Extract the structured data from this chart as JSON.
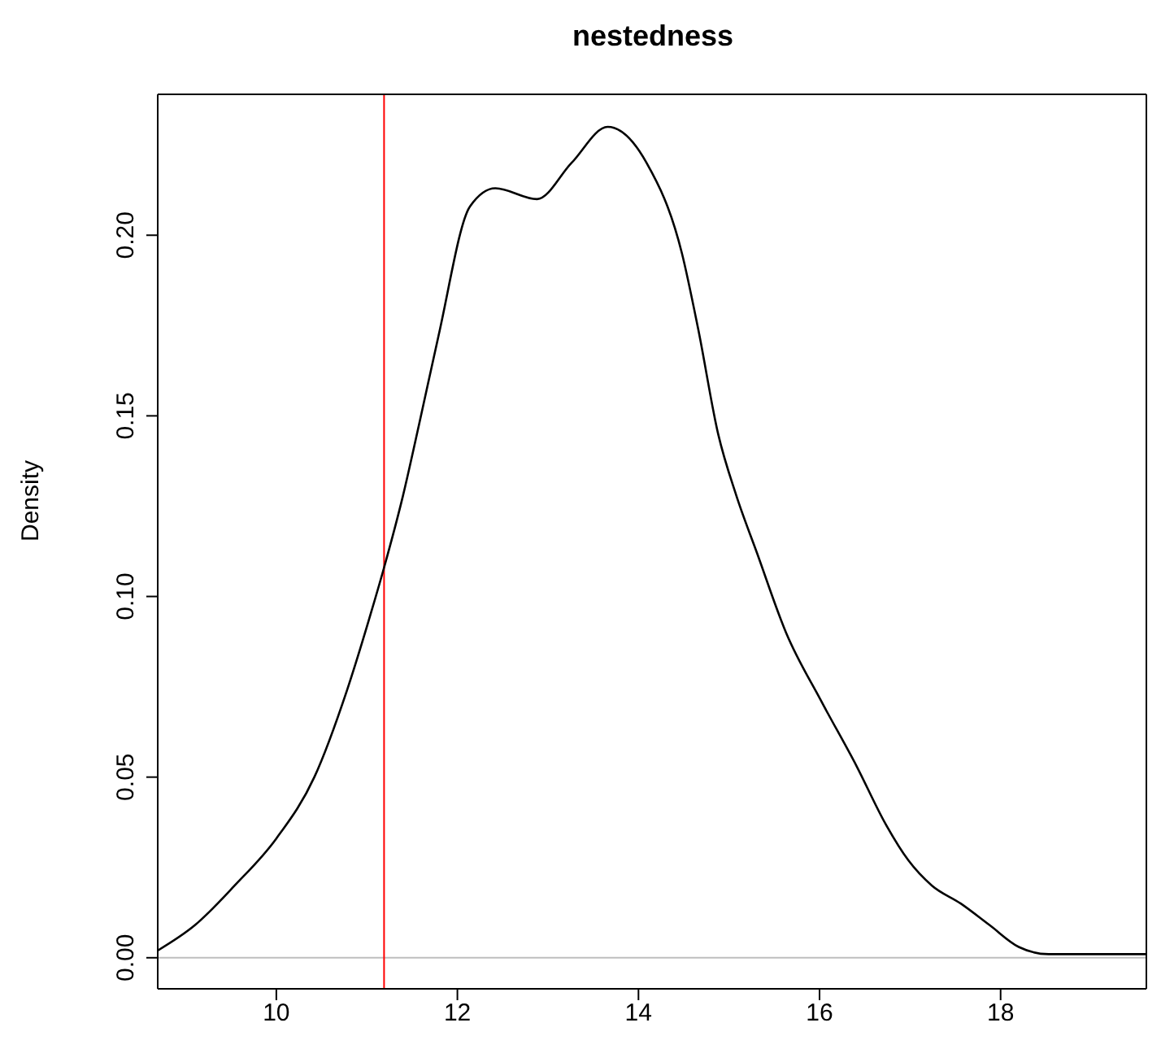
{
  "chart_data": {
    "type": "line",
    "title": "nestedness",
    "ylabel": "Density",
    "x": [
      8.69,
      9.1,
      9.54,
      10.0,
      10.42,
      10.78,
      11.04,
      11.19,
      11.4,
      11.58,
      11.79,
      12.14,
      12.42,
      12.88,
      13.26,
      13.66,
      14.09,
      14.48,
      14.66,
      14.88,
      15.08,
      15.31,
      15.63,
      16.02,
      16.41,
      16.73,
      16.98,
      17.24,
      17.56,
      17.88,
      18.2,
      18.53,
      19.04,
      19.61
    ],
    "series": [
      {
        "color": "#000000",
        "values": [
          0.002,
          0.009,
          0.02,
          0.033,
          0.05,
          0.074,
          0.095,
          0.108,
          0.128,
          0.148,
          0.172,
          0.208,
          0.213,
          0.21,
          0.22,
          0.23,
          0.22,
          0.195,
          0.174,
          0.145,
          0.128,
          0.112,
          0.09,
          0.071,
          0.053,
          0.037,
          0.027,
          0.02,
          0.015,
          0.009,
          0.003,
          0.001,
          0.001,
          0.001
        ]
      }
    ],
    "xlim": [
      8.69,
      19.61
    ],
    "xticks": [
      10,
      12,
      14,
      16,
      18
    ],
    "ylim": [
      -0.0086,
      0.239
    ],
    "yticks": [
      {
        "value": 0,
        "label": "0.00"
      },
      0.05,
      {
        "value": 0.1,
        "label": "0.10"
      },
      0.15,
      {
        "value": 0.2,
        "label": "0.20"
      }
    ],
    "ref_lines": [
      {
        "axis": "y",
        "value": 0,
        "color": "#bebebe"
      },
      {
        "axis": "x",
        "value": 11.19,
        "color": "#ff0000"
      }
    ],
    "grid": false,
    "legend": false,
    "marker": "none",
    "line_style": "solid"
  }
}
